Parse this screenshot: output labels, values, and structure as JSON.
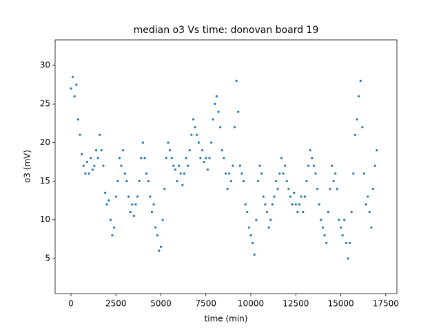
{
  "chart_data": {
    "type": "scatter",
    "title": "median o3 Vs time: donovan board 19",
    "x_label": "time (min)",
    "y_label": "o3 (mV)",
    "color": "#1f77b4",
    "x": [
      0,
      100,
      200,
      300,
      400,
      500,
      600,
      700,
      800,
      900,
      1000,
      1100,
      1200,
      1300,
      1400,
      1500,
      1600,
      1700,
      1800,
      1900,
      2000,
      2100,
      2200,
      2300,
      2400,
      2500,
      2600,
      2700,
      2800,
      2900,
      3000,
      3100,
      3200,
      3300,
      3400,
      3500,
      3600,
      3700,
      3800,
      3900,
      4000,
      4100,
      4200,
      4300,
      4400,
      4500,
      4600,
      4700,
      4800,
      4900,
      5000,
      5100,
      5200,
      5300,
      5400,
      5500,
      5600,
      5700,
      5800,
      5900,
      6000,
      6100,
      6200,
      6300,
      6400,
      6500,
      6600,
      6700,
      6800,
      6900,
      7000,
      7100,
      7200,
      7300,
      7400,
      7500,
      7600,
      7700,
      7800,
      7900,
      8000,
      8100,
      8200,
      8300,
      8400,
      8500,
      8600,
      8700,
      8800,
      8900,
      9000,
      9100,
      9200,
      9300,
      9400,
      9500,
      9600,
      9700,
      9800,
      9900,
      10000,
      10100,
      10200,
      10300,
      10400,
      10500,
      10600,
      10700,
      10800,
      10900,
      11000,
      11100,
      11200,
      11300,
      11400,
      11500,
      11600,
      11700,
      11800,
      11900,
      12000,
      12100,
      12200,
      12300,
      12400,
      12500,
      12600,
      12700,
      12800,
      12900,
      13000,
      13100,
      13200,
      13300,
      13400,
      13500,
      13600,
      13700,
      13800,
      13900,
      14000,
      14100,
      14200,
      14300,
      14400,
      14500,
      14600,
      14700,
      14800,
      14900,
      15000,
      15100,
      15200,
      15300,
      15400,
      15500,
      15600,
      15700,
      15800,
      15900,
      16000,
      16100,
      16200,
      16300,
      16400,
      16500,
      16600,
      16700,
      16800,
      16900,
      17000
    ],
    "values": [
      27,
      28.5,
      26,
      27.5,
      23,
      21,
      18.5,
      17,
      16,
      17.5,
      16,
      18,
      16.5,
      17,
      19,
      18,
      21,
      19,
      17,
      13.5,
      12,
      12.5,
      10,
      8,
      9,
      13,
      15,
      18,
      17,
      19,
      16,
      15,
      13,
      11,
      12,
      10.5,
      12,
      13,
      15,
      18,
      20,
      18,
      16,
      15,
      13,
      11,
      12,
      9,
      8,
      6,
      6.5,
      10,
      14,
      18,
      20,
      19,
      18,
      17,
      16.5,
      15,
      17,
      16,
      14.5,
      16,
      18,
      17,
      19,
      21,
      23,
      22,
      21,
      20,
      18,
      19,
      17.5,
      18,
      16.5,
      18,
      20,
      23,
      25,
      26,
      24,
      22,
      19,
      18,
      16,
      14,
      16,
      15,
      17,
      22,
      28,
      24,
      17,
      16,
      15,
      12,
      11,
      9,
      8,
      7,
      5.5,
      10,
      15,
      17,
      16,
      13,
      12,
      11,
      9,
      10,
      12,
      13,
      15,
      14,
      16,
      18,
      16,
      17,
      15,
      14,
      13,
      12,
      13.5,
      12,
      11,
      12,
      13,
      11,
      13,
      15,
      17,
      19,
      18,
      17,
      16,
      14,
      12,
      10,
      9,
      8,
      7,
      11,
      14,
      17,
      15,
      16,
      14,
      10,
      9,
      8,
      10,
      7,
      5,
      7,
      11,
      16,
      21,
      23,
      26,
      28,
      22,
      16,
      12,
      13,
      11,
      9,
      14,
      17,
      19
    ],
    "xlim": [
      -880,
      18120
    ],
    "ylim": [
      0.45,
      33.3
    ],
    "xticks": [
      0,
      2500,
      5000,
      7500,
      10000,
      12500,
      15000,
      17500
    ],
    "yticks": [
      5,
      10,
      15,
      20,
      25,
      30
    ]
  }
}
